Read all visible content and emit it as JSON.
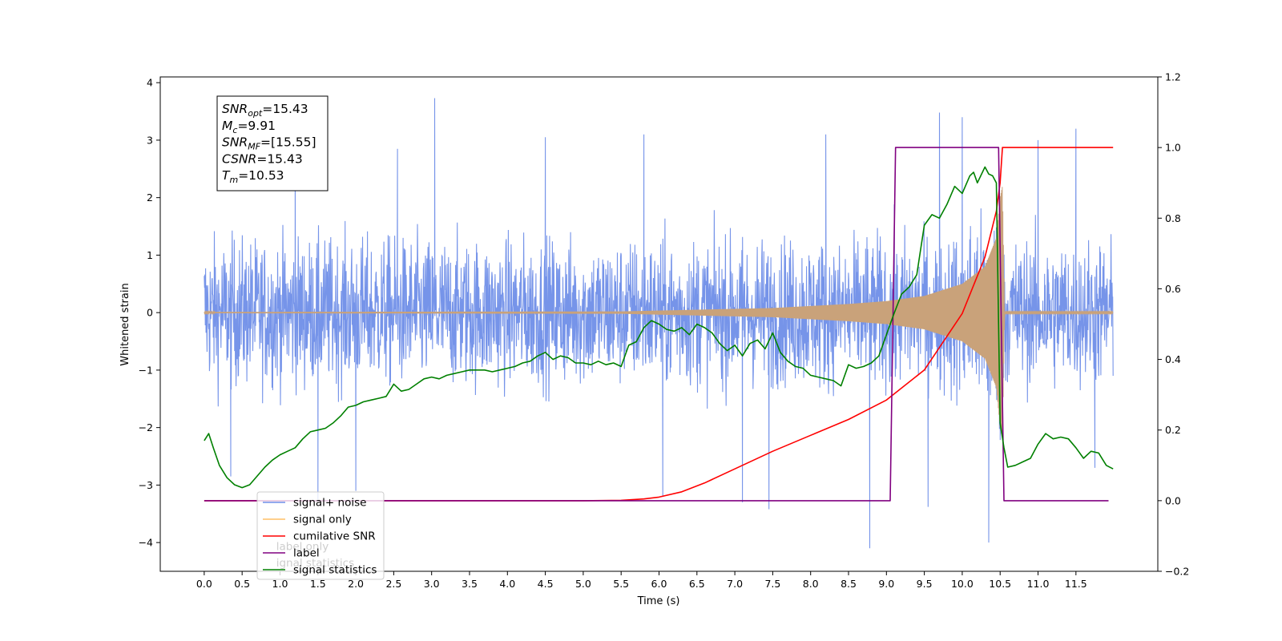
{
  "chart_data": {
    "type": "line",
    "xlabel": "Time (s)",
    "ylabel_left": "Whitened strain",
    "ylabel_right": "",
    "xlim": [
      -0.58,
      12.58
    ],
    "ylim_left": [
      -4.5,
      4.1
    ],
    "ylim_right": [
      -0.2,
      1.2
    ],
    "x_ticks": [
      0.0,
      0.5,
      1.0,
      1.5,
      2.0,
      2.5,
      3.0,
      3.5,
      4.0,
      4.5,
      5.0,
      5.5,
      6.0,
      6.5,
      7.0,
      7.5,
      8.0,
      8.5,
      9.0,
      9.5,
      10.0,
      10.5,
      11.0,
      11.5
    ],
    "x_tick_labels": [
      "0.0",
      "0.5",
      "1.0",
      "1.5",
      "2.0",
      "2.5",
      "3.0",
      "3.5",
      "4.0",
      "4.5",
      "5.0",
      "5.5",
      "6.0",
      "6.5",
      "7.0",
      "7.5",
      "8.0",
      "8.5",
      "9.0",
      "9.5",
      "10.0",
      "10.5",
      "11.0",
      "11.5"
    ],
    "y_ticks_left": [
      -4,
      -3,
      -2,
      -1,
      0,
      1,
      2,
      3,
      4
    ],
    "y_tick_labels_left": [
      "−4",
      "−3",
      "−2",
      "−1",
      "0",
      "1",
      "2",
      "3",
      "4"
    ],
    "y_ticks_right": [
      -0.2,
      0.0,
      0.2,
      0.4,
      0.6,
      0.8,
      1.0,
      1.2
    ],
    "y_tick_labels_right": [
      "−0.2",
      "0.0",
      "0.2",
      "0.4",
      "0.6",
      "0.8",
      "1.0",
      "1.2"
    ],
    "grid": false,
    "stats_box": [
      {
        "main": "SNR",
        "sub": "opt",
        "value": "=15.43"
      },
      {
        "main": "M",
        "sub": "c",
        "value": "=9.91"
      },
      {
        "main": "SNR",
        "sub": "MF",
        "value": "=[15.55]"
      },
      {
        "main": "CSNR",
        "sub": "",
        "value": "=15.43"
      },
      {
        "main": "T",
        "sub": "m",
        "value": "=10.53"
      }
    ],
    "legend_placement": "lower-left",
    "legend": [
      {
        "label": "signal+ noise",
        "color": "#6f8ee8"
      },
      {
        "label": "signal only",
        "color": "#ffbf66"
      },
      {
        "label": "cumilative SNR",
        "color": "#ff0000"
      },
      {
        "label": "label",
        "color": "#800080"
      },
      {
        "label": "signal statistics",
        "color": "#008000"
      }
    ],
    "hidden_legend_text": [
      {
        "text": "label only",
        "x_data": 0.95,
        "y_right": -0.14
      },
      {
        "text": "ignal statistics",
        "x_data": 0.95,
        "y_right": -0.186
      }
    ],
    "series": [
      {
        "name": "signal+ noise",
        "axis": "left",
        "color": "#6f8ee8",
        "kind": "noise",
        "x_range": [
          0.0,
          11.99
        ],
        "envelope": 1.5,
        "spikes": [
          {
            "x": 3.04,
            "y": 3.73
          },
          {
            "x": 9.7,
            "y": 3.48
          },
          {
            "x": 10.0,
            "y": 3.4
          },
          {
            "x": 11.5,
            "y": 3.2
          },
          {
            "x": 8.78,
            "y": -4.1
          },
          {
            "x": 10.35,
            "y": -4.0
          },
          {
            "x": 7.45,
            "y": -3.42
          },
          {
            "x": 1.5,
            "y": -3.25
          },
          {
            "x": 7.1,
            "y": -3.3
          },
          {
            "x": 9.55,
            "y": -3.38
          },
          {
            "x": 2.0,
            "y": -3.1
          },
          {
            "x": 6.05,
            "y": -3.2
          },
          {
            "x": 4.5,
            "y": 3.05
          },
          {
            "x": 5.8,
            "y": 3.1
          },
          {
            "x": 8.2,
            "y": 3.1
          },
          {
            "x": 1.2,
            "y": 2.9
          },
          {
            "x": 2.55,
            "y": 2.85
          },
          {
            "x": 11.0,
            "y": 3.0
          },
          {
            "x": 0.35,
            "y": -2.85
          },
          {
            "x": 11.75,
            "y": -2.7
          }
        ]
      },
      {
        "name": "signal only",
        "axis": "left",
        "color": "#c9a27a",
        "kind": "chirp",
        "x_range": [
          0.0,
          11.99
        ],
        "merger_time": 10.53,
        "peak_amplitude": 2.2,
        "x": [
          0.0,
          5.5,
          6.5,
          7.5,
          8.5,
          9.0,
          9.5,
          10.0,
          10.3,
          10.45,
          10.5,
          10.53,
          10.56,
          11.99
        ],
        "amplitude": [
          0.01,
          0.02,
          0.05,
          0.08,
          0.15,
          0.2,
          0.29,
          0.5,
          0.8,
          1.3,
          2.0,
          2.2,
          0.01,
          0.01
        ]
      },
      {
        "name": "cumilative SNR",
        "axis": "right",
        "color": "#ff0000",
        "x": [
          0.0,
          5.0,
          5.5,
          5.8,
          6.0,
          6.3,
          6.6,
          7.0,
          7.5,
          8.0,
          8.5,
          9.0,
          9.5,
          10.0,
          10.3,
          10.45,
          10.5,
          10.53,
          10.55,
          11.99
        ],
        "y": [
          0.0,
          0.0,
          0.001,
          0.005,
          0.01,
          0.025,
          0.05,
          0.09,
          0.14,
          0.185,
          0.23,
          0.285,
          0.37,
          0.53,
          0.69,
          0.82,
          0.9,
          1.0,
          1.0,
          1.0
        ]
      },
      {
        "name": "label",
        "axis": "right",
        "color": "#800080",
        "x": [
          0.0,
          9.05,
          9.12,
          10.48,
          10.55,
          11.93
        ],
        "y": [
          0.0,
          0.0,
          1.0,
          1.0,
          0.0,
          0.0
        ]
      },
      {
        "name": "signal statistics",
        "axis": "right",
        "color": "#008000",
        "x": [
          0.0,
          0.06,
          0.12,
          0.2,
          0.3,
          0.4,
          0.5,
          0.6,
          0.7,
          0.8,
          0.9,
          1.0,
          1.1,
          1.2,
          1.3,
          1.4,
          1.5,
          1.6,
          1.7,
          1.8,
          1.9,
          2.0,
          2.1,
          2.2,
          2.3,
          2.4,
          2.5,
          2.6,
          2.7,
          2.8,
          2.9,
          3.0,
          3.1,
          3.2,
          3.3,
          3.4,
          3.5,
          3.6,
          3.7,
          3.8,
          3.9,
          4.0,
          4.1,
          4.2,
          4.3,
          4.4,
          4.5,
          4.6,
          4.7,
          4.8,
          4.9,
          5.0,
          5.1,
          5.2,
          5.3,
          5.4,
          5.5,
          5.6,
          5.7,
          5.8,
          5.9,
          6.0,
          6.1,
          6.2,
          6.3,
          6.4,
          6.5,
          6.6,
          6.7,
          6.8,
          6.9,
          7.0,
          7.1,
          7.2,
          7.3,
          7.4,
          7.5,
          7.6,
          7.7,
          7.8,
          7.9,
          8.0,
          8.1,
          8.2,
          8.3,
          8.4,
          8.5,
          8.6,
          8.7,
          8.8,
          8.9,
          9.0,
          9.1,
          9.2,
          9.3,
          9.4,
          9.5,
          9.6,
          9.7,
          9.8,
          9.9,
          10.0,
          10.1,
          10.15,
          10.2,
          10.3,
          10.35,
          10.4,
          10.45,
          10.5,
          10.55,
          10.6,
          10.7,
          10.8,
          10.9,
          11.0,
          11.1,
          11.2,
          11.3,
          11.4,
          11.5,
          11.6,
          11.7,
          11.8,
          11.9,
          11.99
        ],
        "y": [
          0.17,
          0.19,
          0.15,
          0.1,
          0.065,
          0.045,
          0.037,
          0.045,
          0.07,
          0.095,
          0.115,
          0.13,
          0.14,
          0.15,
          0.175,
          0.195,
          0.2,
          0.205,
          0.22,
          0.24,
          0.265,
          0.27,
          0.28,
          0.285,
          0.29,
          0.295,
          0.33,
          0.31,
          0.315,
          0.33,
          0.345,
          0.35,
          0.345,
          0.355,
          0.36,
          0.365,
          0.37,
          0.37,
          0.37,
          0.365,
          0.37,
          0.375,
          0.38,
          0.39,
          0.395,
          0.41,
          0.42,
          0.4,
          0.41,
          0.405,
          0.39,
          0.39,
          0.385,
          0.395,
          0.385,
          0.39,
          0.38,
          0.44,
          0.45,
          0.49,
          0.51,
          0.5,
          0.485,
          0.48,
          0.49,
          0.47,
          0.5,
          0.49,
          0.475,
          0.445,
          0.425,
          0.44,
          0.41,
          0.445,
          0.455,
          0.43,
          0.475,
          0.42,
          0.395,
          0.38,
          0.375,
          0.355,
          0.35,
          0.345,
          0.34,
          0.325,
          0.385,
          0.375,
          0.38,
          0.39,
          0.41,
          0.47,
          0.53,
          0.585,
          0.605,
          0.64,
          0.78,
          0.81,
          0.8,
          0.84,
          0.89,
          0.87,
          0.92,
          0.93,
          0.9,
          0.945,
          0.925,
          0.92,
          0.9,
          0.22,
          0.15,
          0.095,
          0.1,
          0.11,
          0.12,
          0.16,
          0.19,
          0.175,
          0.18,
          0.175,
          0.15,
          0.12,
          0.14,
          0.135,
          0.1,
          0.09
        ]
      }
    ]
  }
}
